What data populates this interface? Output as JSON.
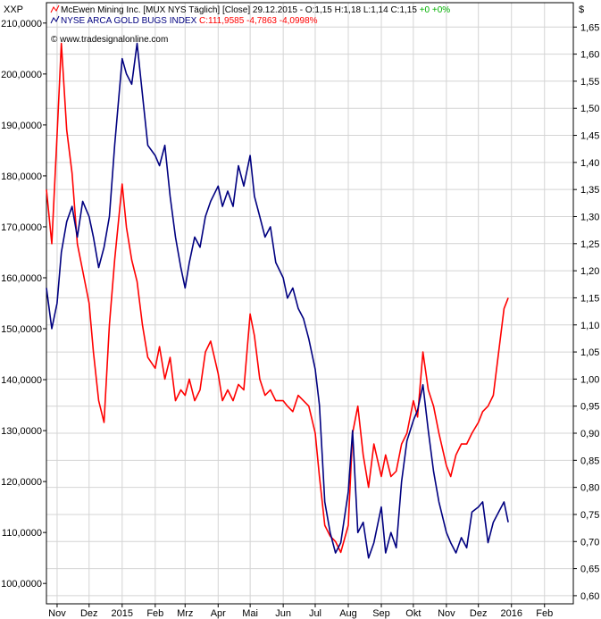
{
  "chart_data": {
    "type": "line",
    "left_axis_label": "XXP",
    "right_axis_label": "$",
    "watermark": "© www.tradesignalonline.com",
    "legend": [
      {
        "series_id": "mux",
        "parts": [
          {
            "text": "McEwen Mining Inc. [MUX NYS  Täglich] [Close] 29.12.2015 - O:1,15 H:1,18 L:1,14 C:1,15 ",
            "color": "#000000"
          },
          {
            "text": "+0 +0%",
            "color": "#00b000"
          }
        ],
        "icon_color": "#ff0000"
      },
      {
        "series_id": "hui",
        "parts": [
          {
            "text": "NYSE ARCA GOLD BUGS INDEX ",
            "color": "#000080"
          },
          {
            "text": "C:111,9585 -4,7863 -4,0998%",
            "color": "#ff0000"
          }
        ],
        "icon_color": "#000080"
      }
    ],
    "x_ticks": [
      "Nov",
      "Dez",
      "2015",
      "Feb",
      "Mrz",
      "Apr",
      "Mai",
      "Jun",
      "Jul",
      "Aug",
      "Sep",
      "Okt",
      "Nov",
      "Dez",
      "2016",
      "Feb"
    ],
    "x_tick_dates": [
      "2014-11-01",
      "2014-12-01",
      "2015-01-01",
      "2015-02-01",
      "2015-03-01",
      "2015-04-01",
      "2015-05-01",
      "2015-06-01",
      "2015-07-01",
      "2015-08-01",
      "2015-09-01",
      "2015-10-01",
      "2015-11-01",
      "2015-12-01",
      "2016-01-01",
      "2016-02-01"
    ],
    "x_range": [
      "2014-10-22",
      "2016-02-28"
    ],
    "left_axis": {
      "ylim": [
        96000,
        214000
      ],
      "ticks": [
        "100,0000",
        "110,0000",
        "120,0000",
        "130,0000",
        "140,0000",
        "150,0000",
        "160,0000",
        "170,0000",
        "180,0000",
        "190,0000",
        "200,0000",
        "210,0000"
      ],
      "tick_values": [
        100000,
        110000,
        120000,
        130000,
        140000,
        150000,
        160000,
        170000,
        180000,
        190000,
        200000,
        210000
      ]
    },
    "right_axis": {
      "ylim": [
        0.585,
        1.695
      ],
      "ticks": [
        "0,60",
        "0,65",
        "0,70",
        "0,75",
        "0,80",
        "0,85",
        "0,90",
        "0,95",
        "1,00",
        "1,05",
        "1,10",
        "1,15",
        "1,20",
        "1,25",
        "1,30",
        "1,35",
        "1,40",
        "1,45",
        "1,50",
        "1,55",
        "1,60",
        "1,65"
      ],
      "tick_values": [
        0.6,
        0.65,
        0.7,
        0.75,
        0.8,
        0.85,
        0.9,
        0.95,
        1.0,
        1.05,
        1.1,
        1.15,
        1.2,
        1.25,
        1.3,
        1.35,
        1.4,
        1.45,
        1.5,
        1.55,
        1.6,
        1.65
      ]
    },
    "grid": true,
    "series": [
      {
        "id": "mux",
        "name": "McEwen Mining Inc.",
        "axis": "right",
        "color": "#ff0000",
        "x": [
          "2014-10-22",
          "2014-10-27",
          "2014-11-01",
          "2014-11-05",
          "2014-11-10",
          "2014-11-15",
          "2014-11-20",
          "2014-11-25",
          "2014-12-01",
          "2014-12-05",
          "2014-12-10",
          "2014-12-15",
          "2014-12-20",
          "2014-12-25",
          "2015-01-01",
          "2015-01-05",
          "2015-01-10",
          "2015-01-15",
          "2015-01-20",
          "2015-01-25",
          "2015-02-01",
          "2015-02-05",
          "2015-02-10",
          "2015-02-15",
          "2015-02-20",
          "2015-02-25",
          "2015-03-01",
          "2015-03-05",
          "2015-03-10",
          "2015-03-15",
          "2015-03-20",
          "2015-03-25",
          "2015-04-01",
          "2015-04-05",
          "2015-04-10",
          "2015-04-15",
          "2015-04-20",
          "2015-04-25",
          "2015-05-01",
          "2015-05-05",
          "2015-05-10",
          "2015-05-15",
          "2015-05-20",
          "2015-05-25",
          "2015-06-01",
          "2015-06-05",
          "2015-06-10",
          "2015-06-15",
          "2015-06-20",
          "2015-06-25",
          "2015-07-01",
          "2015-07-05",
          "2015-07-10",
          "2015-07-15",
          "2015-07-20",
          "2015-07-25",
          "2015-08-01",
          "2015-08-05",
          "2015-08-10",
          "2015-08-15",
          "2015-08-20",
          "2015-08-25",
          "2015-09-01",
          "2015-09-05",
          "2015-09-10",
          "2015-09-15",
          "2015-09-20",
          "2015-09-25",
          "2015-10-01",
          "2015-10-05",
          "2015-10-10",
          "2015-10-15",
          "2015-10-20",
          "2015-10-25",
          "2015-11-01",
          "2015-11-05",
          "2015-11-10",
          "2015-11-15",
          "2015-11-20",
          "2015-11-25",
          "2015-12-01",
          "2015-12-05",
          "2015-12-10",
          "2015-12-15",
          "2015-12-20",
          "2015-12-25",
          "2015-12-29"
        ],
        "values": [
          1.35,
          1.25,
          1.45,
          1.62,
          1.46,
          1.38,
          1.25,
          1.2,
          1.14,
          1.05,
          0.96,
          0.92,
          1.1,
          1.22,
          1.36,
          1.28,
          1.22,
          1.18,
          1.1,
          1.04,
          1.02,
          1.06,
          1.0,
          1.04,
          0.96,
          0.98,
          0.97,
          1.0,
          0.96,
          0.98,
          1.05,
          1.07,
          1.01,
          0.96,
          0.98,
          0.96,
          0.99,
          0.98,
          1.12,
          1.08,
          1.0,
          0.97,
          0.98,
          0.96,
          0.96,
          0.95,
          0.94,
          0.97,
          0.96,
          0.95,
          0.9,
          0.82,
          0.73,
          0.71,
          0.7,
          0.68,
          0.73,
          0.9,
          0.95,
          0.86,
          0.8,
          0.88,
          0.82,
          0.86,
          0.82,
          0.83,
          0.88,
          0.9,
          0.96,
          0.93,
          1.05,
          0.98,
          0.95,
          0.9,
          0.84,
          0.82,
          0.86,
          0.88,
          0.88,
          0.9,
          0.92,
          0.94,
          0.95,
          0.97,
          1.05,
          1.13,
          1.15
        ]
      },
      {
        "id": "hui",
        "name": "NYSE ARCA GOLD BUGS INDEX",
        "axis": "left",
        "color": "#000080",
        "x": [
          "2014-10-22",
          "2014-10-27",
          "2014-11-01",
          "2014-11-05",
          "2014-11-10",
          "2014-11-15",
          "2014-11-20",
          "2014-11-25",
          "2014-12-01",
          "2014-12-05",
          "2014-12-10",
          "2014-12-15",
          "2014-12-20",
          "2014-12-25",
          "2015-01-01",
          "2015-01-05",
          "2015-01-10",
          "2015-01-15",
          "2015-01-20",
          "2015-01-25",
          "2015-02-01",
          "2015-02-05",
          "2015-02-10",
          "2015-02-15",
          "2015-02-20",
          "2015-02-25",
          "2015-03-01",
          "2015-03-05",
          "2015-03-10",
          "2015-03-15",
          "2015-03-20",
          "2015-03-25",
          "2015-04-01",
          "2015-04-05",
          "2015-04-10",
          "2015-04-15",
          "2015-04-20",
          "2015-04-25",
          "2015-05-01",
          "2015-05-05",
          "2015-05-10",
          "2015-05-15",
          "2015-05-20",
          "2015-05-25",
          "2015-06-01",
          "2015-06-05",
          "2015-06-10",
          "2015-06-15",
          "2015-06-20",
          "2015-06-25",
          "2015-07-01",
          "2015-07-05",
          "2015-07-10",
          "2015-07-15",
          "2015-07-20",
          "2015-07-25",
          "2015-08-01",
          "2015-08-05",
          "2015-08-10",
          "2015-08-15",
          "2015-08-20",
          "2015-08-25",
          "2015-09-01",
          "2015-09-05",
          "2015-09-10",
          "2015-09-15",
          "2015-09-20",
          "2015-09-25",
          "2015-10-01",
          "2015-10-05",
          "2015-10-10",
          "2015-10-15",
          "2015-10-20",
          "2015-10-25",
          "2015-11-01",
          "2015-11-05",
          "2015-11-10",
          "2015-11-15",
          "2015-11-20",
          "2015-11-25",
          "2015-12-01",
          "2015-12-05",
          "2015-12-10",
          "2015-12-15",
          "2015-12-20",
          "2015-12-25",
          "2015-12-29"
        ],
        "values": [
          158000,
          150000,
          155000,
          165000,
          171000,
          174000,
          168000,
          175000,
          172000,
          168000,
          162000,
          166000,
          172000,
          186000,
          203000,
          200000,
          198000,
          206000,
          196000,
          186000,
          184000,
          182000,
          186000,
          176000,
          168000,
          162000,
          158000,
          163000,
          168000,
          166000,
          172000,
          175000,
          178000,
          174000,
          177000,
          174000,
          182000,
          178000,
          184000,
          176000,
          172000,
          168000,
          170000,
          163000,
          160000,
          156000,
          158000,
          154000,
          152000,
          148000,
          142000,
          135000,
          116000,
          110000,
          106000,
          108000,
          118000,
          130000,
          110000,
          112000,
          105000,
          108000,
          115000,
          106000,
          110000,
          107000,
          120000,
          128000,
          132000,
          134000,
          139000,
          130000,
          122000,
          116000,
          110000,
          108000,
          106000,
          109000,
          107000,
          114000,
          115000,
          116000,
          108000,
          112000,
          114000,
          116000,
          112000
        ]
      }
    ]
  }
}
